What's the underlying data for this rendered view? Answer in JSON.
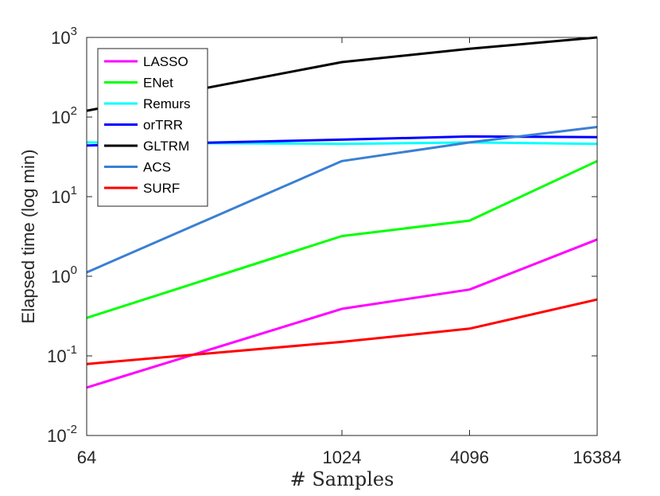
{
  "chart_data": {
    "type": "line",
    "xlabel": "# Samples",
    "ylabel": "Elapsed time (log min)",
    "x_scale": "log2",
    "y_scale": "log10",
    "x": [
      64,
      1024,
      4096,
      16384
    ],
    "x_tick_labels": [
      "64",
      "1024",
      "4096",
      "16384"
    ],
    "xlim": [
      64,
      16384
    ],
    "ylim": [
      0.01,
      1000
    ],
    "y_ticks": [
      {
        "base": "10",
        "exp": "-2"
      },
      {
        "base": "10",
        "exp": "-1"
      },
      {
        "base": "10",
        "exp": "0"
      },
      {
        "base": "10",
        "exp": "1"
      },
      {
        "base": "10",
        "exp": "2"
      },
      {
        "base": "10",
        "exp": "3"
      }
    ],
    "grid": false,
    "legend_position": "top-left",
    "series": [
      {
        "name": "LASSO",
        "color": "#ff00ff",
        "values": [
          0.04,
          0.39,
          0.68,
          2.9
        ]
      },
      {
        "name": "ENet",
        "color": "#00ff00",
        "values": [
          0.3,
          3.2,
          5.0,
          28
        ]
      },
      {
        "name": "Remurs",
        "color": "#00ffff",
        "values": [
          48,
          46,
          48,
          46
        ]
      },
      {
        "name": "orTRR",
        "color": "#0000ff",
        "values": [
          44,
          52,
          57,
          56
        ]
      },
      {
        "name": "GLTRM",
        "color": "#000000",
        "values": [
          120,
          490,
          720,
          1000
        ]
      },
      {
        "name": "ACS",
        "color": "#3b7fd4",
        "values": [
          1.12,
          28,
          48,
          75
        ]
      },
      {
        "name": "SURF",
        "color": "#ff0000",
        "values": [
          0.079,
          0.15,
          0.22,
          0.51
        ]
      }
    ]
  }
}
